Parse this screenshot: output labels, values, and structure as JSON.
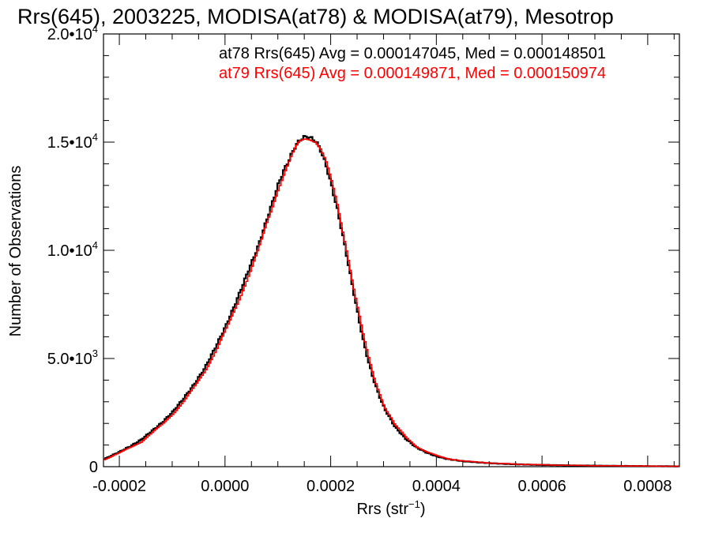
{
  "chart_data": {
    "type": "line",
    "title": "Rrs(645), 2003225, MODISA(at78) & MODISA(at79), Mesotrop",
    "xlabel_main": "Rrs (str",
    "xlabel_sup": "−1",
    "xlabel_close": ")",
    "ylabel": "Number of Observations",
    "xlim": [
      -0.00023,
      0.00086
    ],
    "ylim": [
      0,
      20000
    ],
    "x_ticks": [
      {
        "value": -0.0002,
        "label": "-0.0002"
      },
      {
        "value": 0.0,
        "label": "0.0000"
      },
      {
        "value": 0.0002,
        "label": "0.0002"
      },
      {
        "value": 0.0004,
        "label": "0.0004"
      },
      {
        "value": 0.0006,
        "label": "0.0006"
      },
      {
        "value": 0.0008,
        "label": "0.0008"
      }
    ],
    "y_ticks": [
      {
        "value": 0,
        "mant": "0",
        "exp": ""
      },
      {
        "value": 5000,
        "mant": "5.0•10",
        "exp": "3"
      },
      {
        "value": 10000,
        "mant": "1.0•10",
        "exp": "4"
      },
      {
        "value": 15000,
        "mant": "1.5•10",
        "exp": "4"
      },
      {
        "value": 20000,
        "mant": "2.0•10",
        "exp": "4"
      }
    ],
    "annotations": [
      {
        "text": "at78 Rrs(645) Avg = 0.000147045, Med = 0.000148501",
        "color": "#000000"
      },
      {
        "text": "at79 Rrs(645) Avg = 0.000149871, Med = 0.000150974",
        "color": "#ff0000"
      }
    ],
    "series": [
      {
        "color": "#000000",
        "x": [
          -0.00023,
          -0.0002,
          -0.00018,
          -0.00016,
          -0.00014,
          -0.00012,
          -0.0001,
          -8e-05,
          -6e-05,
          -4e-05,
          -2e-05,
          0.0,
          2e-05,
          4e-05,
          6e-05,
          8e-05,
          0.0001,
          0.00011,
          0.00012,
          0.00013,
          0.00014,
          0.00015,
          0.00016,
          0.00017,
          0.00018,
          0.00019,
          0.0002,
          0.00021,
          0.00022,
          0.00023,
          0.00024,
          0.00025,
          0.00026,
          0.00027,
          0.00028,
          0.00029,
          0.0003,
          0.00032,
          0.00034,
          0.00036,
          0.00038,
          0.0004,
          0.00042,
          0.00045,
          0.0005,
          0.00055,
          0.0006,
          0.00065,
          0.0007,
          0.00075,
          0.0008,
          0.00086
        ],
        "y": [
          350,
          700,
          950,
          1250,
          1650,
          2050,
          2550,
          3150,
          3800,
          4550,
          5500,
          6500,
          7650,
          8900,
          10100,
          11600,
          13100,
          13700,
          14200,
          14750,
          15100,
          15250,
          15200,
          15050,
          14600,
          13900,
          13000,
          12000,
          10850,
          9600,
          8300,
          7050,
          5850,
          4850,
          4000,
          3300,
          2700,
          1850,
          1300,
          900,
          650,
          470,
          350,
          250,
          160,
          110,
          80,
          60,
          45,
          35,
          25,
          15
        ]
      },
      {
        "color": "#ff0000",
        "x": [
          -0.00023,
          -0.0002,
          -0.00018,
          -0.00016,
          -0.00014,
          -0.00012,
          -0.0001,
          -8e-05,
          -6e-05,
          -4e-05,
          -2e-05,
          0.0,
          2e-05,
          4e-05,
          6e-05,
          8e-05,
          0.0001,
          0.00011,
          0.00012,
          0.00013,
          0.00014,
          0.00015,
          0.00016,
          0.00017,
          0.00018,
          0.00019,
          0.0002,
          0.00021,
          0.00022,
          0.00023,
          0.00024,
          0.00025,
          0.00026,
          0.00027,
          0.00028,
          0.00029,
          0.0003,
          0.00032,
          0.00034,
          0.00036,
          0.00038,
          0.0004,
          0.00042,
          0.00045,
          0.0005,
          0.00055,
          0.0006,
          0.00065,
          0.0007,
          0.00075,
          0.0008,
          0.00086
        ],
        "y": [
          330,
          650,
          900,
          1150,
          1550,
          1950,
          2450,
          3000,
          3650,
          4400,
          5300,
          6300,
          7400,
          8650,
          9900,
          11400,
          12900,
          13550,
          14100,
          14650,
          15000,
          15150,
          15150,
          15050,
          14700,
          14050,
          13200,
          12200,
          11050,
          9850,
          8550,
          7300,
          6100,
          5050,
          4150,
          3450,
          2800,
          1950,
          1380,
          950,
          690,
          500,
          370,
          260,
          170,
          115,
          85,
          62,
          47,
          36,
          26,
          16
        ]
      }
    ]
  }
}
